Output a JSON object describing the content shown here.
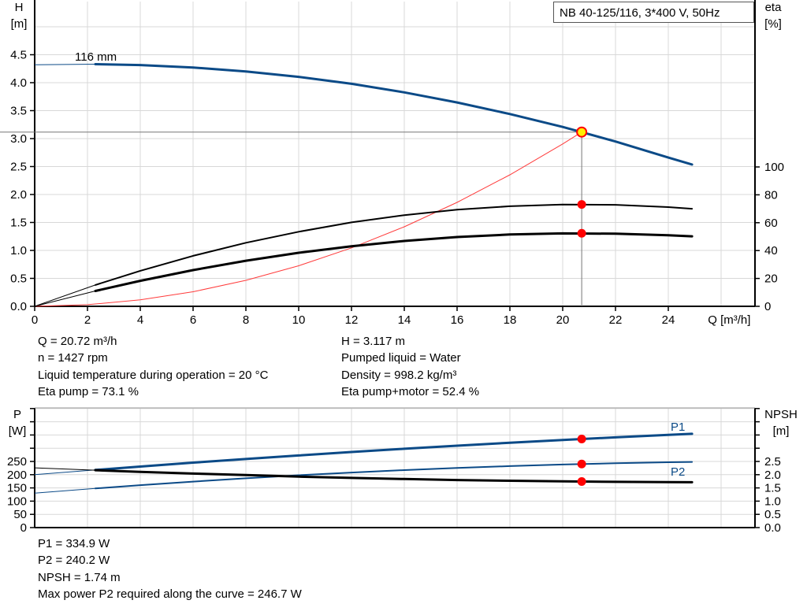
{
  "title_box": "NB 40-125/116, 3*400 V, 50Hz",
  "chart_data": [
    {
      "type": "line",
      "xlabel": "Q [m³/h]",
      "ylabel_left": [
        "H",
        "[m]"
      ],
      "ylabel_right": [
        "eta",
        "[%]"
      ],
      "xlim": [
        0,
        26.7
      ],
      "ylim_left": [
        0,
        5.45
      ],
      "ylim_right": [
        0,
        100
      ],
      "grid": true,
      "x_ticks": [
        "0",
        "2",
        "4",
        "6",
        "8",
        "10",
        "12",
        "14",
        "16",
        "18",
        "20",
        "22",
        "24"
      ],
      "y_left_ticks": [
        "0.0",
        "0.5",
        "1.0",
        "1.5",
        "2.0",
        "2.5",
        "3.0",
        "3.5",
        "4.0",
        "4.5"
      ],
      "y_right_ticks": [
        "0",
        "20",
        "40",
        "60",
        "80",
        "100"
      ],
      "curve_label": "116 mm",
      "series": [
        {
          "id": "H",
          "axis": "left",
          "color": "#0b4a87",
          "x": [
            2.3,
            4,
            6,
            8,
            10,
            12,
            14,
            16,
            18,
            20,
            22,
            24,
            24.9
          ],
          "y": [
            4.331,
            4.315,
            4.272,
            4.201,
            4.104,
            3.98,
            3.827,
            3.647,
            3.44,
            3.208,
            2.948,
            2.66,
            2.537
          ],
          "extension": {
            "x": [
              0,
              2.3
            ],
            "y": [
              4.32,
              4.331
            ]
          }
        },
        {
          "id": "eta_pump",
          "axis": "right",
          "color": "#000000",
          "x": [
            2.3,
            4,
            6,
            8,
            10,
            12,
            14,
            16,
            18,
            20,
            22,
            24,
            24.9
          ],
          "y": [
            15.3,
            25.5,
            36.2,
            45.6,
            53.5,
            60.2,
            65.4,
            69.3,
            71.8,
            73.0,
            72.8,
            71.2,
            70.0
          ],
          "extension": {
            "x": [
              0,
              2.3
            ],
            "y": [
              0,
              15.3
            ]
          }
        },
        {
          "id": "eta_total",
          "axis": "right",
          "color": "#000000",
          "x": [
            2.3,
            4,
            6,
            8,
            10,
            12,
            14,
            16,
            18,
            20,
            22,
            24,
            24.9
          ],
          "y": [
            11.0,
            18.3,
            26.0,
            32.7,
            38.4,
            43.1,
            46.9,
            49.7,
            51.5,
            52.3,
            52.1,
            51.0,
            50.2
          ],
          "extension": {
            "x": [
              0,
              2.3
            ],
            "y": [
              0,
              11.0
            ]
          }
        },
        {
          "id": "system",
          "axis": "left",
          "color": "#ff3b3b",
          "x": [
            0,
            2,
            4,
            6,
            8,
            10,
            12,
            14,
            16,
            18,
            20,
            20.72
          ],
          "y": [
            0,
            0.029,
            0.116,
            0.261,
            0.465,
            0.726,
            1.045,
            1.423,
            1.859,
            2.352,
            2.904,
            3.117
          ]
        }
      ],
      "operating_point": {
        "Q": 20.72,
        "H": 3.117,
        "eta_pump": 73.1,
        "eta_total": 52.4
      }
    },
    {
      "type": "line",
      "ylabel_left": [
        "P",
        "[W]"
      ],
      "ylabel_right": [
        "NPSH",
        "[m]"
      ],
      "xlim": [
        0,
        26.7
      ],
      "ylim_left": [
        0,
        452
      ],
      "ylim_right": [
        0,
        4.52
      ],
      "grid": true,
      "y_left_ticks": [
        "0",
        "50",
        "100",
        "150",
        "200",
        "250"
      ],
      "y_right_ticks": [
        "0.0",
        "0.5",
        "1.0",
        "1.5",
        "2.0",
        "2.5"
      ],
      "series": [
        {
          "id": "P1",
          "name": "P1",
          "axis": "left",
          "color": "#0b4a87",
          "x": [
            2.3,
            4,
            6,
            8,
            10,
            12,
            14,
            16,
            18,
            20,
            22,
            24,
            24.9
          ],
          "y": [
            218.0,
            230.8,
            245.4,
            259.3,
            272.7,
            285.6,
            297.8,
            309.5,
            320.7,
            331.2,
            341.2,
            350.6,
            354.6
          ],
          "extension": {
            "x": [
              0,
              2.3
            ],
            "y": [
              200,
              218.0
            ]
          }
        },
        {
          "id": "P2",
          "name": "P2",
          "axis": "left",
          "color": "#0b4a87",
          "x": [
            2.3,
            4,
            6,
            8,
            10,
            12,
            14,
            16,
            18,
            20,
            22,
            24,
            24.9
          ],
          "y": [
            148.0,
            160.4,
            173.9,
            186.4,
            197.8,
            208.1,
            217.3,
            225.4,
            232.4,
            238.3,
            243.2,
            246.9,
            248.2
          ],
          "extension": {
            "x": [
              0,
              2.3
            ],
            "y": [
              130,
              148.0
            ]
          }
        },
        {
          "id": "NPSH",
          "axis": "right",
          "color": "#000000",
          "x": [
            2.3,
            4,
            6,
            8,
            10,
            12,
            14,
            16,
            18,
            20,
            22,
            24,
            24.9
          ],
          "y": [
            2.17,
            2.108,
            2.042,
            1.986,
            1.927,
            1.878,
            1.836,
            1.799,
            1.77,
            1.746,
            1.728,
            1.716,
            1.713
          ],
          "extension": {
            "x": [
              0,
              2.3
            ],
            "y": [
              2.26,
              2.17
            ]
          }
        }
      ],
      "operating_point": {
        "Q": 20.72,
        "P1": 334.9,
        "P2": 240.2,
        "NPSH": 1.74
      }
    }
  ],
  "info_top": {
    "left": [
      "Q = 20.72 m³/h",
      "n = 1427 rpm",
      "Liquid temperature during operation = 20 °C",
      "Eta pump = 73.1 %"
    ],
    "right": [
      "H = 3.117 m",
      "Pumped liquid = Water",
      "Density = 998.2 kg/m³",
      "Eta pump+motor = 52.4 %"
    ]
  },
  "info_bottom": [
    "P1 = 334.9 W",
    "P2 = 240.2 W",
    "NPSH = 1.74 m",
    "Max power P2 required along the curve = 246.7 W"
  ]
}
